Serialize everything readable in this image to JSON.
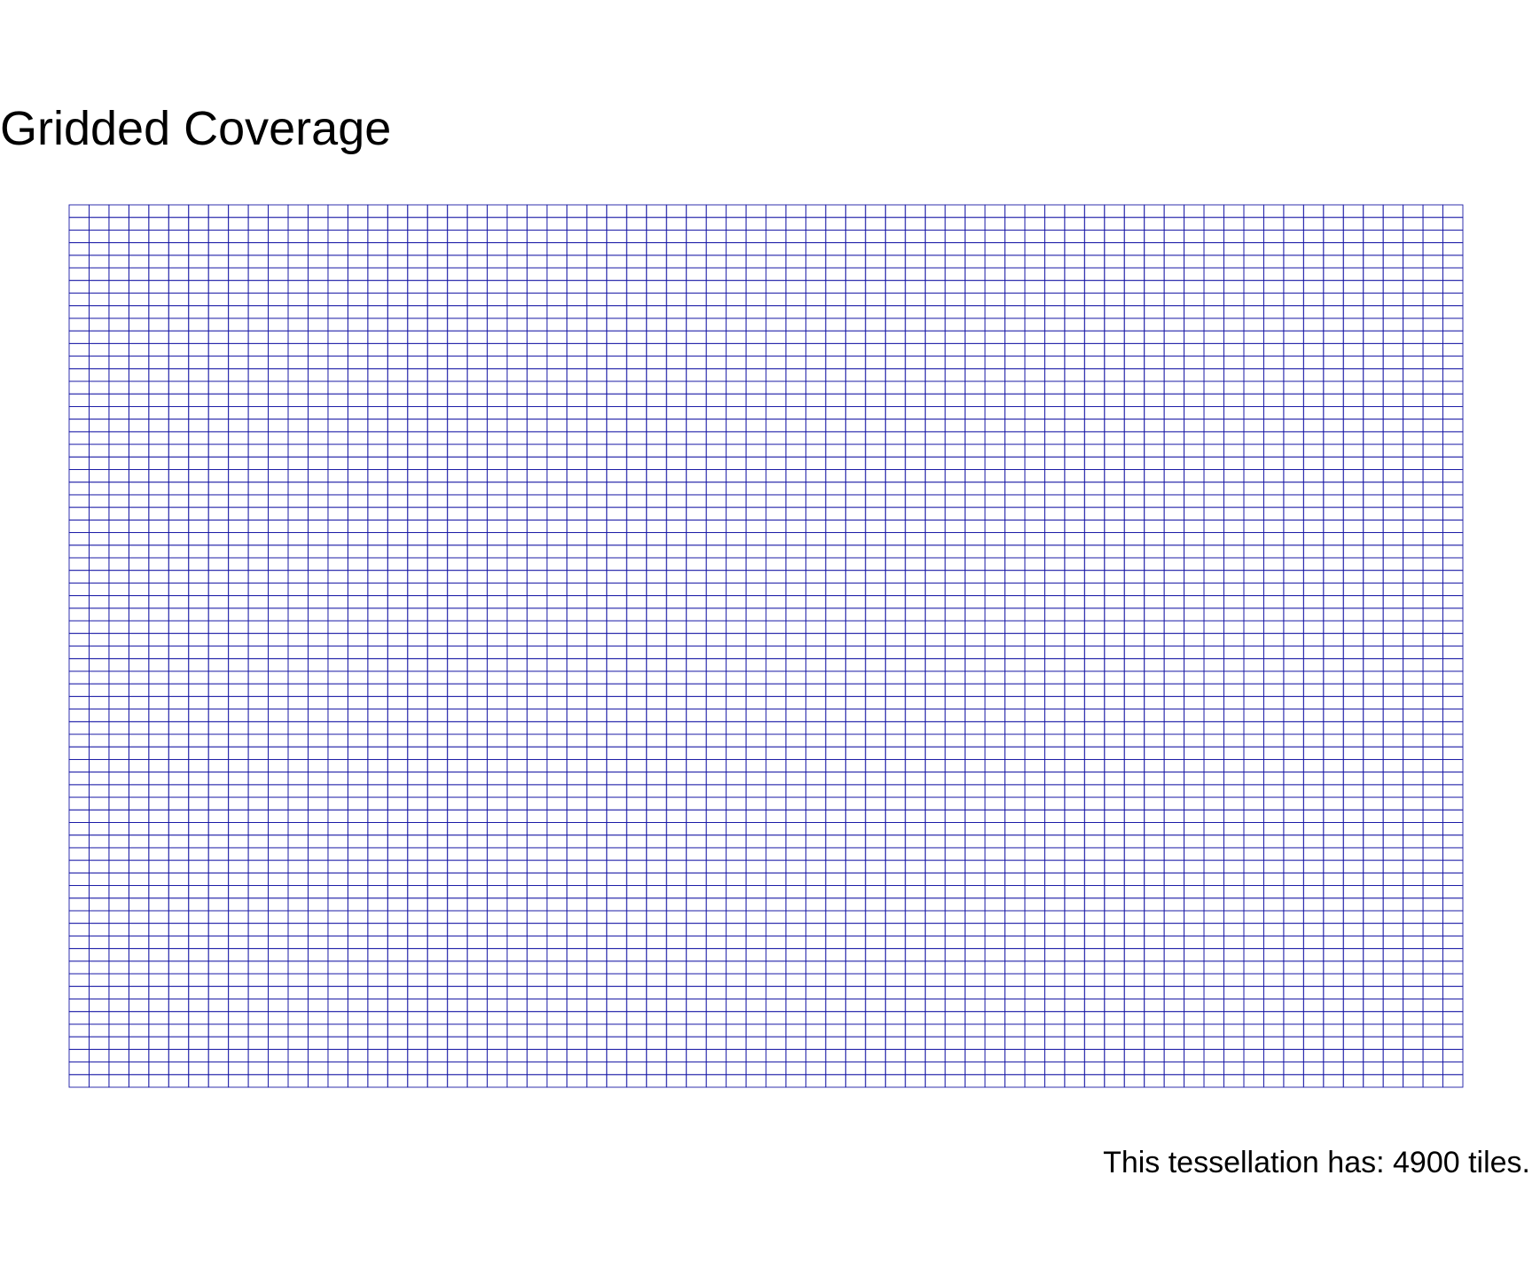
{
  "title": "Gridded Coverage",
  "caption": "This tessellation has: 4900 tiles.",
  "colors": {
    "grid_line": "#1a1aa6",
    "background": "#ffffff",
    "text": "#000000"
  },
  "chart_data": {
    "type": "tessellation",
    "columns": 70,
    "rows": 70,
    "tile_count": 4900,
    "grid": true,
    "axes": "none",
    "legend": "none"
  }
}
